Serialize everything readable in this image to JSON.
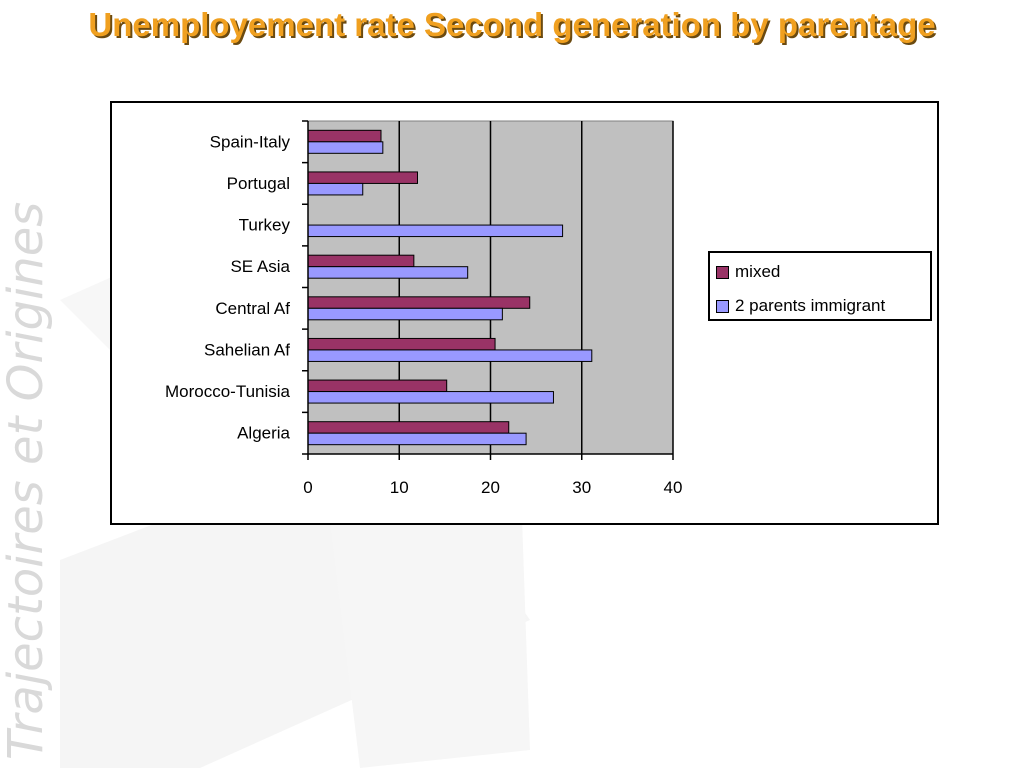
{
  "slide": {
    "title": "Unemployement rate Second generation by parentage",
    "watermark_text": "Trajectoires et Origines"
  },
  "colors": {
    "title": "#f0a020",
    "title_shadow": "#6b4a10",
    "plot_background": "#c0c0c0",
    "series_mixed": "#993366",
    "series_2_parents": "#9999ff"
  },
  "chart_data": {
    "type": "bar",
    "orientation": "horizontal",
    "categories": [
      "Spain-Italy",
      "Portugal",
      "Turkey",
      "SE Asia",
      "Central Af",
      "Sahelian Af",
      "Morocco-Tunisia",
      "Algeria"
    ],
    "series": [
      {
        "name": "mixed",
        "color": "#993366",
        "values": [
          8,
          12,
          null,
          11.6,
          24.3,
          20.5,
          15.2,
          22
        ]
      },
      {
        "name": "2 parents immigrant",
        "color": "#9999ff",
        "values": [
          8.2,
          6,
          27.9,
          17.5,
          21.3,
          31.1,
          26.9,
          23.9
        ]
      }
    ],
    "xlim": [
      0,
      40
    ],
    "xticks": [
      0,
      10,
      20,
      30,
      40
    ],
    "grid": "vertical major gridlines",
    "legend_position": "right",
    "title": "",
    "xlabel": "",
    "ylabel": ""
  },
  "legend": {
    "items": [
      {
        "label": "mixed",
        "color": "#993366"
      },
      {
        "label": "2 parents immigrant",
        "color": "#9999ff"
      }
    ]
  }
}
